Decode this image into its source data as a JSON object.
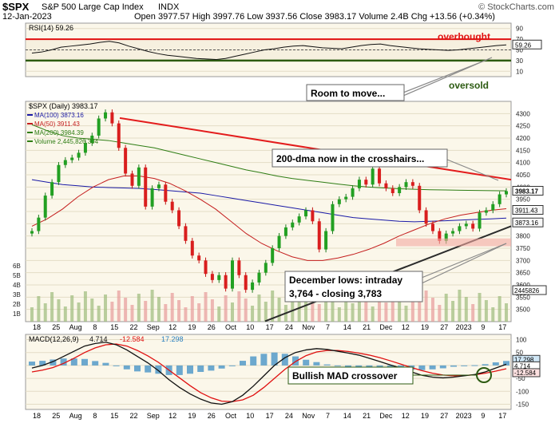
{
  "header": {
    "symbol": "$SPX",
    "name": "S&P 500 Large Cap Index",
    "exchange": "INDX",
    "watermark": "© StockCharts.com",
    "date": "12-Jan-2023",
    "ohlc": "Open 3977.57  High 3997.76  Low 3937.56  Close 3983.17  Volume 2.4B  Chg +13.56 (+0.34%)"
  },
  "chart_data": [
    {
      "type": "line",
      "panel": "rsi",
      "title": "RSI(14) 59.26",
      "ylim": [
        0,
        100
      ],
      "yticks": [
        10,
        30,
        50,
        70,
        90
      ],
      "levels": [
        70,
        50,
        30
      ],
      "last_value": 59.26,
      "last_label": "59.26",
      "values": [
        44,
        46,
        50,
        55,
        57,
        59,
        61,
        64,
        66,
        63,
        57,
        52,
        47,
        43,
        40,
        38,
        36,
        34,
        33,
        32,
        34,
        38,
        42,
        46,
        50,
        52,
        55,
        57,
        58,
        56,
        54,
        53,
        52,
        55,
        58,
        60,
        61,
        58,
        56,
        54,
        52,
        51,
        50,
        49,
        50,
        52,
        54,
        56,
        58,
        59.26
      ],
      "annotations": [
        "overbought",
        "oversold",
        "Room to move..."
      ]
    },
    {
      "type": "candlestick",
      "panel": "price",
      "title": "$SPX (Daily) 3983.17",
      "ylim": [
        3450,
        4350
      ],
      "yticks": [
        3500,
        3550,
        3600,
        3650,
        3700,
        3750,
        3800,
        3850,
        3900,
        3950,
        4000,
        4050,
        4100,
        4150,
        4200,
        4250,
        4300
      ],
      "x_labels": [
        "18",
        "25",
        "Aug",
        "8",
        "15",
        "22",
        "Sep",
        "12",
        "19",
        "26",
        "Oct",
        "10",
        "17",
        "24",
        "Nov",
        "7",
        "14",
        "21",
        "Dec",
        "12",
        "19",
        "27",
        "2023",
        "9",
        "17"
      ],
      "closes": [
        3820,
        3875,
        3965,
        4020,
        4090,
        4110,
        4120,
        4140,
        4180,
        4210,
        4280,
        4305,
        4260,
        4160,
        4055,
        4005,
        4080,
        3920,
        3995,
        4010,
        3940,
        3905,
        3840,
        3780,
        3720,
        3700,
        3645,
        3620,
        3640,
        3585,
        3700,
        3640,
        3580,
        3610,
        3650,
        3690,
        3750,
        3800,
        3835,
        3855,
        3880,
        3905,
        3860,
        3745,
        3820,
        3930,
        3950,
        3960,
        3995,
        4030,
        4010,
        4075,
        4015,
        3995,
        3975,
        4000,
        4020,
        4005,
        3905,
        3850,
        3820,
        3780,
        3810,
        3820,
        3840,
        3850,
        3830,
        3895,
        3905,
        3930,
        3970,
        3983.17
      ],
      "volume_yticks": [
        "1B",
        "2B",
        "3B",
        "4B",
        "5B",
        "6B"
      ],
      "series": [
        {
          "name": "MA(100)",
          "legend": "MA(100) 3873.16",
          "last": 3873.16,
          "values": [
            4030,
            4020,
            4010,
            4005,
            4000,
            3998,
            3996,
            3994,
            3990,
            3985,
            3980,
            3975,
            3965,
            3955,
            3945,
            3935,
            3925,
            3915,
            3905,
            3895,
            3885,
            3875,
            3870,
            3865,
            3860,
            3858,
            3860,
            3862,
            3865,
            3868,
            3870,
            3873.16
          ]
        },
        {
          "name": "MA(50)",
          "legend": "MA(50) 3911.43",
          "last": 3911.43,
          "values": [
            3840,
            3870,
            3910,
            3960,
            4000,
            4030,
            4045,
            4045,
            4035,
            4015,
            3985,
            3950,
            3910,
            3860,
            3810,
            3770,
            3740,
            3715,
            3700,
            3700,
            3710,
            3725,
            3745,
            3770,
            3800,
            3825,
            3850,
            3870,
            3885,
            3895,
            3905,
            3911.43
          ]
        },
        {
          "name": "MA(200)",
          "legend": "MA(200) 3984.39",
          "last": 3984.39,
          "values": [
            4255,
            4230,
            4210,
            4200,
            4195,
            4190,
            4180,
            4170,
            4160,
            4145,
            4130,
            4115,
            4100,
            4085,
            4070,
            4058,
            4045,
            4035,
            4027,
            4020,
            4012,
            4005,
            4000,
            3996,
            3993,
            3991,
            3989,
            3988,
            3987,
            3986,
            3985,
            3984.39
          ]
        },
        {
          "name": "Volume",
          "legend": "Volume 2,445,826,304",
          "last": 2445826304
        }
      ],
      "price_tags": [
        "3983.17",
        "3911.43",
        "3873.16"
      ],
      "volume_tag": "2445826",
      "annotations": [
        "200-dma now in the crosshairs...",
        "December lows: intraday",
        "3,764 - closing 3,783"
      ]
    },
    {
      "type": "line",
      "panel": "macd",
      "title": "MACD(12,26,9)",
      "legend": [
        "4.714",
        "-12.584",
        "17.298"
      ],
      "ylim": [
        -170,
        120
      ],
      "yticks": [
        "100",
        "50",
        "0",
        "-50",
        "-100",
        "-150"
      ],
      "tags": [
        "4.714",
        "-12.584",
        "17.298"
      ],
      "series": [
        {
          "name": "MACD",
          "values": [
            -10,
            0,
            15,
            35,
            55,
            75,
            85,
            90,
            80,
            60,
            35,
            10,
            -20,
            -55,
            -85,
            -110,
            -130,
            -145,
            -150,
            -140,
            -115,
            -80,
            -40,
            0,
            30,
            50,
            60,
            65,
            62,
            55,
            48,
            40,
            28,
            15,
            2,
            -10,
            -25,
            -38,
            -45,
            -48,
            -45,
            -40,
            -35,
            -25,
            -10,
            4.714
          ]
        },
        {
          "name": "Signal",
          "values": [
            -25,
            -18,
            -8,
            8,
            28,
            50,
            68,
            80,
            83,
            75,
            58,
            37,
            12,
            -18,
            -48,
            -78,
            -105,
            -125,
            -138,
            -140,
            -133,
            -115,
            -85,
            -50,
            -15,
            15,
            38,
            52,
            58,
            58,
            54,
            48,
            40,
            30,
            18,
            5,
            -8,
            -20,
            -30,
            -37,
            -40,
            -39,
            -36,
            -30,
            -22,
            -12.584
          ]
        },
        {
          "name": "Histogram",
          "values": [
            15,
            18,
            23,
            27,
            27,
            25,
            17,
            10,
            -3,
            -15,
            -23,
            -27,
            -32,
            -37,
            -37,
            -32,
            -25,
            -20,
            -12,
            0,
            18,
            35,
            45,
            50,
            45,
            35,
            22,
            13,
            4,
            -3,
            -6,
            -8,
            -12,
            -15,
            -16,
            -15,
            -17,
            -18,
            -15,
            -11,
            -5,
            -1,
            1,
            5,
            12,
            17.298
          ]
        }
      ],
      "x_labels": [
        "18",
        "25",
        "Aug",
        "8",
        "15",
        "22",
        "Sep",
        "12",
        "19",
        "26",
        "Oct",
        "10",
        "17",
        "24",
        "Nov",
        "7",
        "14",
        "21",
        "Dec",
        "12",
        "19",
        "27",
        "2023",
        "9",
        "17"
      ],
      "annotations": [
        "Bullish MAD crossover"
      ]
    }
  ]
}
